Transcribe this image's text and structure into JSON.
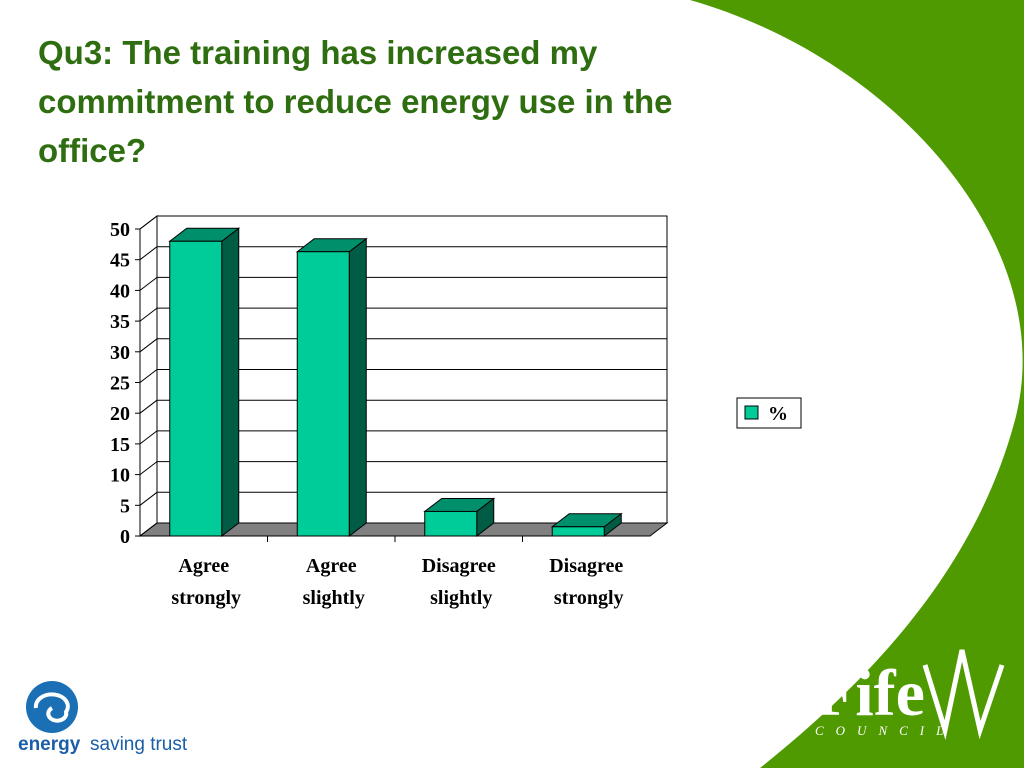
{
  "chart_data": {
    "type": "bar3d",
    "title": "Qu3: The training has increased my commitment to reduce energy use in the office?",
    "categories": [
      "Agree strongly",
      "Agree slightly",
      "Disagree slightly",
      "Disagree strongly"
    ],
    "series": [
      {
        "name": "%",
        "color": "#00cc99",
        "values": [
          48,
          46.3,
          4,
          1.5
        ]
      }
    ],
    "ylim": [
      0,
      50
    ],
    "yticks": [
      0,
      5,
      10,
      15,
      20,
      25,
      30,
      35,
      40,
      45,
      50
    ],
    "grid": true,
    "legend": "right"
  },
  "logos": {
    "left": [
      "energy",
      "saving trust"
    ],
    "right": [
      "Fife",
      "COUNCIL"
    ]
  }
}
